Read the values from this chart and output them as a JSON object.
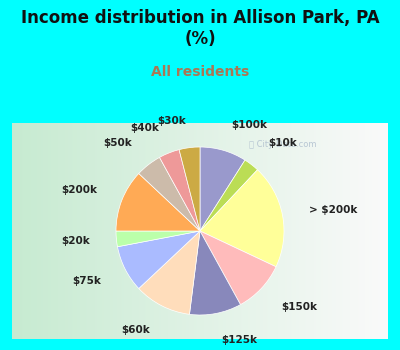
{
  "title": "Income distribution in Allison Park, PA\n(%)",
  "subtitle": "All residents",
  "fig_facecolor": "#00FFFF",
  "chart_facecolor": "#d8ede0",
  "watermark": "ⓘ City-Data.com",
  "labels": [
    "$100k",
    "$10k",
    "> $200k",
    "$150k",
    "$125k",
    "$60k",
    "$75k",
    "$20k",
    "$200k",
    "$50k",
    "$40k",
    "$30k"
  ],
  "values": [
    9,
    3,
    20,
    10,
    10,
    11,
    9,
    3,
    12,
    5,
    4,
    4
  ],
  "colors": [
    "#9999CC",
    "#BBDD55",
    "#FFFF99",
    "#FFBBBB",
    "#8888BB",
    "#FFDDBB",
    "#AABBFF",
    "#BBFFAA",
    "#FFAA55",
    "#CCBBAA",
    "#EE9999",
    "#CCAA44"
  ],
  "label_fontsize": 7.5,
  "title_fontsize": 12,
  "subtitle_fontsize": 10,
  "subtitle_color": "#AA7755",
  "title_color": "#111111"
}
